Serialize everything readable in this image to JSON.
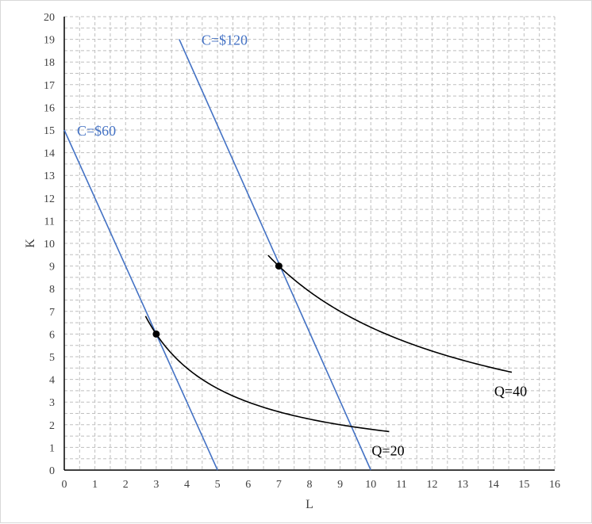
{
  "chart_data": {
    "type": "line",
    "xlabel": "L",
    "ylabel": "K",
    "xlim": [
      0,
      16
    ],
    "ylim": [
      0,
      20
    ],
    "xticks": [
      0,
      1,
      2,
      3,
      4,
      5,
      6,
      7,
      8,
      9,
      10,
      11,
      12,
      13,
      14,
      15,
      16
    ],
    "yticks": [
      0,
      1,
      2,
      3,
      4,
      5,
      6,
      7,
      8,
      9,
      10,
      11,
      12,
      13,
      14,
      15,
      16,
      17,
      18,
      19,
      20
    ],
    "grid": true,
    "isocost_lines": [
      {
        "label": "C=$60",
        "points": [
          [
            0,
            15
          ],
          [
            5,
            0
          ]
        ],
        "color": "#4472c4"
      },
      {
        "label": "C=$120",
        "points": [
          [
            3.75,
            19
          ],
          [
            10,
            0
          ]
        ],
        "color": "#4472c4"
      }
    ],
    "isoquants": [
      {
        "label": "Q=20",
        "k": 18,
        "x_range": [
          2.65,
          10.6
        ],
        "color": "#000000"
      },
      {
        "label": "Q=40",
        "k": 63,
        "x_range": [
          6.65,
          14.6
        ],
        "color": "#000000"
      }
    ],
    "tangency_points": [
      [
        3,
        6
      ],
      [
        7,
        9
      ]
    ]
  }
}
